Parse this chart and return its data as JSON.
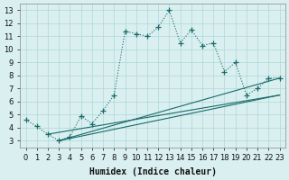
{
  "xlabel": "Humidex (Indice chaleur)",
  "bg_color": "#d9eff0",
  "grid_color": "#b0d8da",
  "line_color": "#1a6b6b",
  "xlim": [
    -0.5,
    23.5
  ],
  "ylim": [
    2.5,
    13.5
  ],
  "xticks": [
    0,
    1,
    2,
    3,
    4,
    5,
    6,
    7,
    8,
    9,
    10,
    11,
    12,
    13,
    14,
    15,
    16,
    17,
    18,
    19,
    20,
    21,
    22,
    23
  ],
  "yticks": [
    3,
    4,
    5,
    6,
    7,
    8,
    9,
    10,
    11,
    12,
    13
  ],
  "curve1_x": [
    0,
    1,
    2,
    3,
    4,
    5,
    6,
    7,
    8,
    9,
    10,
    11,
    12,
    13,
    14,
    15,
    16,
    17,
    18,
    19,
    20,
    21,
    22,
    23
  ],
  "curve1_y": [
    4.6,
    4.1,
    3.5,
    3.0,
    3.3,
    4.9,
    4.3,
    5.3,
    6.5,
    11.4,
    11.2,
    11.0,
    11.7,
    13.0,
    10.5,
    11.5,
    10.3,
    10.5,
    8.3,
    9.0,
    6.5,
    7.0,
    7.8,
    7.8
  ],
  "line1_x": [
    2,
    23
  ],
  "line1_y": [
    3.5,
    6.5
  ],
  "line2_x": [
    3,
    23
  ],
  "line2_y": [
    3.0,
    6.5
  ],
  "line3_x": [
    3,
    23
  ],
  "line3_y": [
    3.0,
    7.8
  ],
  "font_size": 7
}
